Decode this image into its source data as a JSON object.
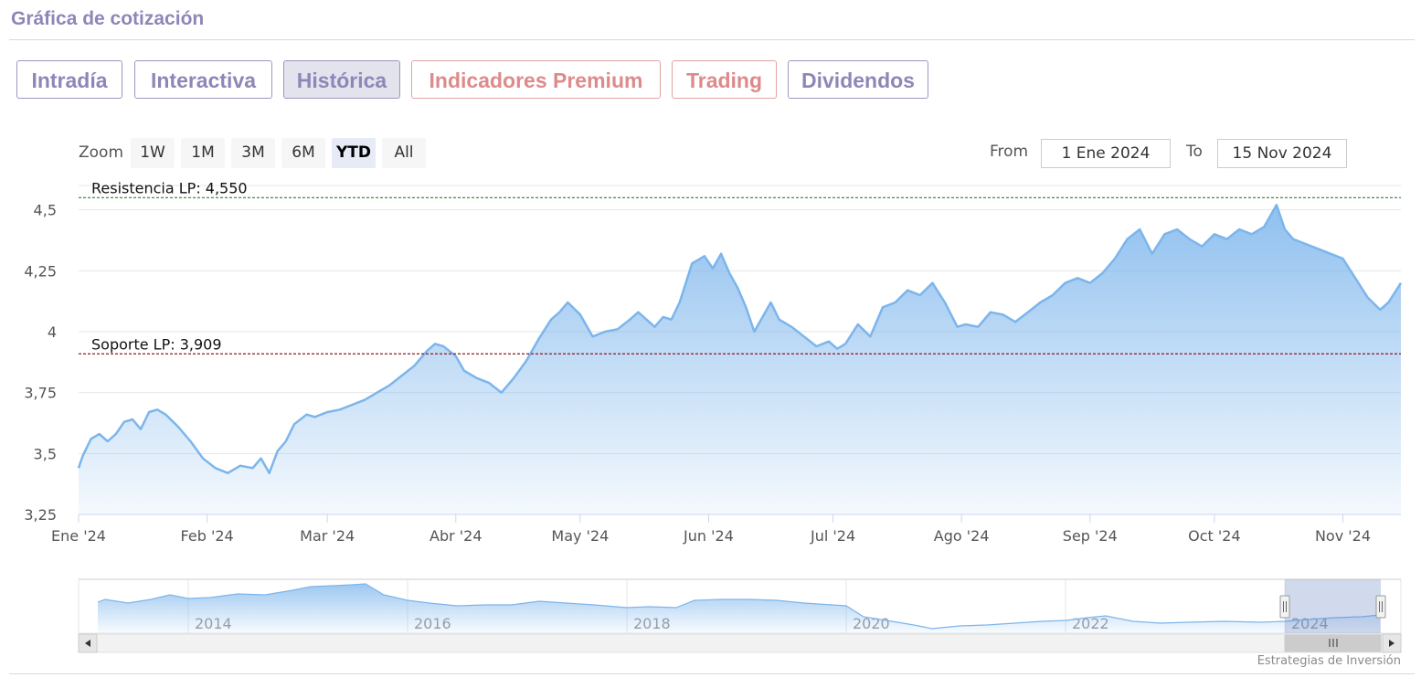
{
  "header": {
    "title": "Gráfica de cotización"
  },
  "tabs": [
    {
      "label": "Intradía",
      "style": "purple",
      "active": false
    },
    {
      "label": "Interactiva",
      "style": "purple",
      "active": false
    },
    {
      "label": "Histórica",
      "style": "purple",
      "active": true
    },
    {
      "label": "Indicadores Premium",
      "style": "red",
      "active": false
    },
    {
      "label": "Trading",
      "style": "red",
      "active": false
    },
    {
      "label": "Dividendos",
      "style": "purple",
      "active": false
    }
  ],
  "range_selector": {
    "zoom_label": "Zoom",
    "buttons": [
      "1W",
      "1M",
      "3M",
      "6M",
      "YTD",
      "All"
    ],
    "selected": "YTD",
    "from_label": "From",
    "from_value": "1 Ene 2024",
    "to_label": "To",
    "to_value": "15 Nov 2024"
  },
  "credits": "Estrategias de Inversión",
  "colors": {
    "line": "#7cb5ec",
    "resistance": "#2e7d32",
    "support": "#8b1a1a",
    "accent_purple": "#8d87b8",
    "accent_red": "#de8a8a"
  },
  "chart_data": [
    {
      "type": "area",
      "x_type": "date",
      "ylim": [
        3.25,
        4.6
      ],
      "y_ticks": [
        3.25,
        3.5,
        3.75,
        4,
        4.25,
        4.5
      ],
      "y_tick_labels": [
        "3,25",
        "3,5",
        "3,75",
        "4",
        "4,25",
        "4,5"
      ],
      "x_ticks": [
        "2024-01-01",
        "2024-02-01",
        "2024-03-01",
        "2024-04-01",
        "2024-05-01",
        "2024-06-01",
        "2024-07-01",
        "2024-08-01",
        "2024-09-01",
        "2024-10-01",
        "2024-11-01"
      ],
      "x_tick_labels": [
        "Ene '24",
        "Feb '24",
        "Mar '24",
        "Abr '24",
        "May '24",
        "Jun '24",
        "Jul '24",
        "Ago '24",
        "Sep '24",
        "Oct '24",
        "Nov '24"
      ],
      "x_range": [
        "2024-01-01",
        "2024-11-15"
      ],
      "grid": true,
      "annotations": [
        {
          "label": "Resistencia LP: 4,550",
          "y": 4.55,
          "style": "dashed",
          "color": "#2e7d32"
        },
        {
          "label": "Soporte LP: 3,909",
          "y": 3.909,
          "style": "dashed",
          "color": "#8b1a1a"
        }
      ],
      "series": [
        {
          "x": [
            "2024-01-01",
            "2024-01-02",
            "2024-01-04",
            "2024-01-06",
            "2024-01-08",
            "2024-01-10",
            "2024-01-12",
            "2024-01-14",
            "2024-01-16",
            "2024-01-18",
            "2024-01-20",
            "2024-01-22",
            "2024-01-25",
            "2024-01-28",
            "2024-01-31",
            "2024-02-03",
            "2024-02-06",
            "2024-02-09",
            "2024-02-12",
            "2024-02-14",
            "2024-02-16",
            "2024-02-18",
            "2024-02-20",
            "2024-02-22",
            "2024-02-25",
            "2024-02-27",
            "2024-03-01",
            "2024-03-04",
            "2024-03-07",
            "2024-03-10",
            "2024-03-13",
            "2024-03-16",
            "2024-03-19",
            "2024-03-22",
            "2024-03-25",
            "2024-03-27",
            "2024-03-29",
            "2024-04-01",
            "2024-04-03",
            "2024-04-06",
            "2024-04-09",
            "2024-04-12",
            "2024-04-15",
            "2024-04-18",
            "2024-04-21",
            "2024-04-24",
            "2024-04-26",
            "2024-04-28",
            "2024-05-01",
            "2024-05-04",
            "2024-05-07",
            "2024-05-10",
            "2024-05-13",
            "2024-05-15",
            "2024-05-17",
            "2024-05-19",
            "2024-05-21",
            "2024-05-23",
            "2024-05-25",
            "2024-05-28",
            "2024-05-31",
            "2024-06-02",
            "2024-06-04",
            "2024-06-06",
            "2024-06-08",
            "2024-06-10",
            "2024-06-12",
            "2024-06-14",
            "2024-06-16",
            "2024-06-18",
            "2024-06-21",
            "2024-06-24",
            "2024-06-27",
            "2024-06-30",
            "2024-07-02",
            "2024-07-04",
            "2024-07-07",
            "2024-07-10",
            "2024-07-13",
            "2024-07-16",
            "2024-07-19",
            "2024-07-22",
            "2024-07-25",
            "2024-07-28",
            "2024-07-31",
            "2024-08-02",
            "2024-08-05",
            "2024-08-08",
            "2024-08-11",
            "2024-08-14",
            "2024-08-17",
            "2024-08-20",
            "2024-08-23",
            "2024-08-26",
            "2024-08-29",
            "2024-09-01",
            "2024-09-04",
            "2024-09-07",
            "2024-09-10",
            "2024-09-13",
            "2024-09-16",
            "2024-09-19",
            "2024-09-22",
            "2024-09-25",
            "2024-09-28",
            "2024-10-01",
            "2024-10-04",
            "2024-10-07",
            "2024-10-10",
            "2024-10-13",
            "2024-10-16",
            "2024-10-18",
            "2024-10-20",
            "2024-10-23",
            "2024-10-26",
            "2024-10-29",
            "2024-11-01",
            "2024-11-04",
            "2024-11-07",
            "2024-11-10",
            "2024-11-12",
            "2024-11-15"
          ],
          "values": [
            3.44,
            3.49,
            3.56,
            3.58,
            3.55,
            3.58,
            3.63,
            3.64,
            3.6,
            3.67,
            3.68,
            3.66,
            3.61,
            3.55,
            3.48,
            3.44,
            3.42,
            3.45,
            3.44,
            3.48,
            3.42,
            3.51,
            3.55,
            3.62,
            3.66,
            3.65,
            3.67,
            3.68,
            3.7,
            3.72,
            3.75,
            3.78,
            3.82,
            3.86,
            3.92,
            3.95,
            3.94,
            3.9,
            3.84,
            3.81,
            3.79,
            3.75,
            3.81,
            3.88,
            3.97,
            4.05,
            4.08,
            4.12,
            4.07,
            3.98,
            4.0,
            4.01,
            4.05,
            4.08,
            4.05,
            4.02,
            4.06,
            4.05,
            4.12,
            4.28,
            4.31,
            4.26,
            4.32,
            4.24,
            4.18,
            4.1,
            4.0,
            4.06,
            4.12,
            4.05,
            4.02,
            3.98,
            3.94,
            3.96,
            3.93,
            3.95,
            4.03,
            3.98,
            4.1,
            4.12,
            4.17,
            4.15,
            4.2,
            4.12,
            4.02,
            4.03,
            4.02,
            4.08,
            4.07,
            4.04,
            4.08,
            4.12,
            4.15,
            4.2,
            4.22,
            4.2,
            4.24,
            4.3,
            4.38,
            4.42,
            4.32,
            4.4,
            4.42,
            4.38,
            4.35,
            4.4,
            4.38,
            4.42,
            4.4,
            4.43,
            4.52,
            4.42,
            4.38,
            4.36,
            4.34,
            4.32,
            4.3,
            4.22,
            4.14,
            4.09,
            4.12,
            4.2
          ]
        }
      ]
    },
    {
      "type": "area",
      "role": "navigator",
      "x_tick_labels": [
        "2014",
        "2016",
        "2018",
        "2020",
        "2022",
        "2024"
      ],
      "selected_range": [
        "2024-01-01",
        "2024-11-15"
      ]
    }
  ]
}
